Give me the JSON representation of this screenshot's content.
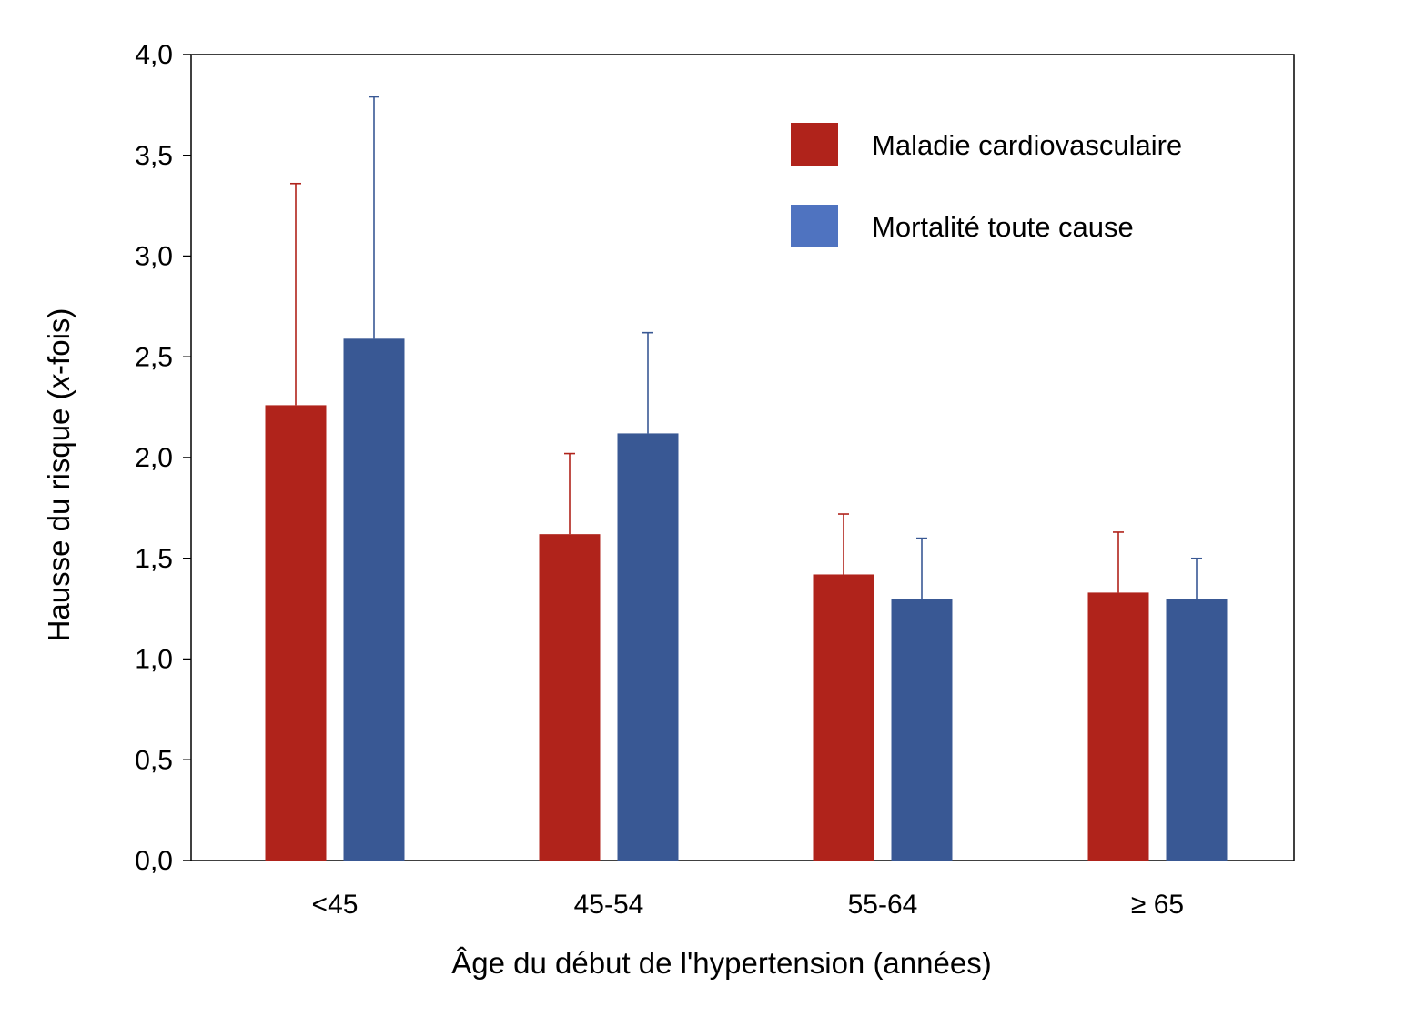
{
  "chart_data": {
    "type": "bar",
    "title": "",
    "xlabel": "Âge du début de l'hypertension (années)",
    "ylabel_parts": [
      "Hausse du risque (",
      "x",
      "-fois)"
    ],
    "categories": [
      "<45",
      "45-54",
      "55-64",
      "≥ 65"
    ],
    "ylim": [
      0,
      4
    ],
    "yticks": [
      "0,0",
      "0,5",
      "1,0",
      "1,5",
      "2,0",
      "2,5",
      "3,0",
      "3,5",
      "4,0"
    ],
    "ytick_values": [
      0,
      0.5,
      1,
      1.5,
      2,
      2.5,
      3,
      3.5,
      4
    ],
    "legend_position": "top-right",
    "grid": false,
    "series": [
      {
        "name": "Maladie cardiovasculaire",
        "color": "#b0231b",
        "values": [
          2.26,
          1.62,
          1.42,
          1.33
        ],
        "error_upper": [
          3.36,
          2.02,
          1.72,
          1.63
        ]
      },
      {
        "name": "Mortalité toute cause",
        "color": "#395894",
        "legend_color": "#4f73c0",
        "values": [
          2.59,
          2.12,
          1.3,
          1.3
        ],
        "error_upper": [
          3.79,
          2.62,
          1.6,
          1.5
        ]
      }
    ]
  }
}
